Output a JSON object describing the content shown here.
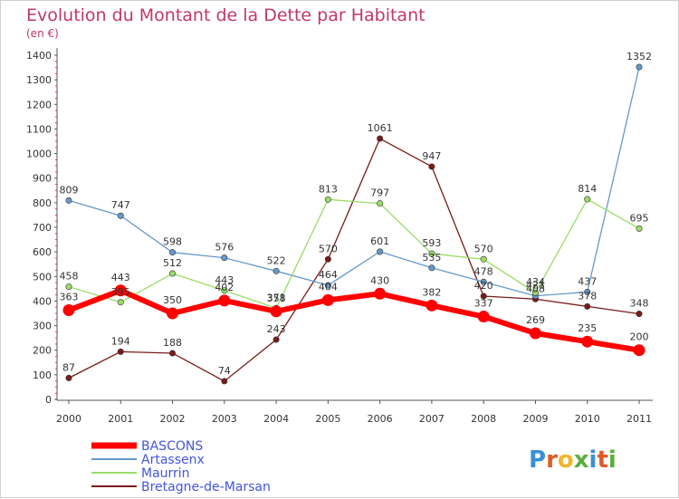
{
  "chart_data": {
    "type": "line",
    "title": "Evolution du Montant de la Dette par Habitant",
    "subtitle": "(en €)",
    "xlabel": "",
    "ylabel": "",
    "categories": [
      "2000",
      "2001",
      "2002",
      "2003",
      "2004",
      "2005",
      "2006",
      "2007",
      "2008",
      "2009",
      "2010",
      "2011"
    ],
    "ylim": [
      0,
      1400
    ],
    "yticks": [
      0,
      100,
      200,
      300,
      400,
      500,
      600,
      700,
      800,
      900,
      1000,
      1100,
      1200,
      1300,
      1400
    ],
    "grid": false,
    "legend_position": "bottom-left",
    "series": [
      {
        "name": "BASCONS",
        "color": "#ff0000",
        "values": [
          363,
          443,
          350,
          402,
          358,
          404,
          430,
          382,
          337,
          269,
          235,
          200
        ]
      },
      {
        "name": "Artassenx",
        "color": "#6699cc",
        "values": [
          809,
          747,
          598,
          576,
          522,
          464,
          601,
          535,
          478,
          421,
          437,
          1352
        ]
      },
      {
        "name": "Maurrin",
        "color": "#99dd66",
        "values": [
          458,
          395,
          512,
          443,
          371,
          813,
          797,
          593,
          570,
          434,
          814,
          695
        ]
      },
      {
        "name": "Bretagne-de-Marsan",
        "color": "#7a1a1a",
        "values": [
          87,
          194,
          188,
          74,
          243,
          570,
          1061,
          947,
          420,
          408,
          378,
          348
        ]
      }
    ]
  },
  "brand": {
    "name": "Proxiti",
    "letters": [
      "P",
      "r",
      "o",
      "x",
      "i",
      "t",
      "i"
    ],
    "colors": [
      "#3a8fd6",
      "#e05a28",
      "#f3b42b",
      "#5aaf3c",
      "#3a8fd6",
      "#e05a28",
      "#5aaf3c"
    ]
  }
}
